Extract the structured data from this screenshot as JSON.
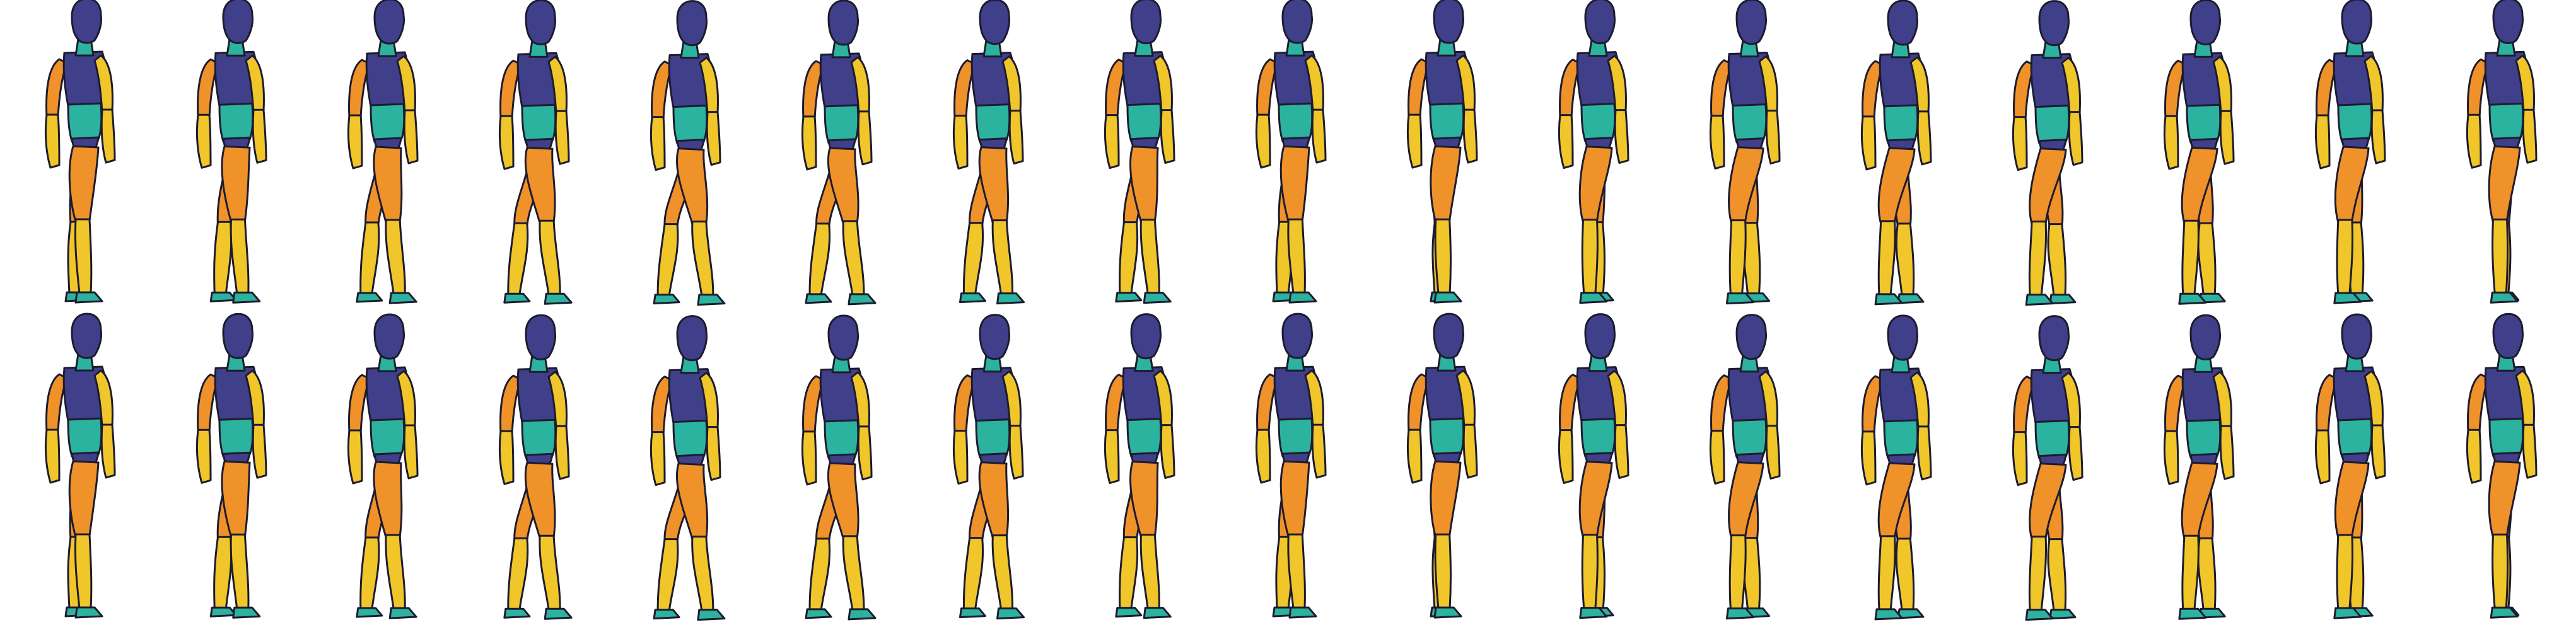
{
  "sprite_sheet": {
    "rows": 2,
    "columns": 17,
    "frame_count": 34,
    "animation": "walk-cycle",
    "character": "mannequin-figure",
    "facing": "right",
    "background": "#ffffff"
  },
  "palette": {
    "head": "#3f3f8a",
    "torso_upper": "#3f3f8a",
    "torso_lower": "#2bb3a0",
    "neck": "#2bb3a0",
    "upper_arm": "#f0922a",
    "forearm": "#f0c62a",
    "briefs": "#3f3f8a",
    "thigh": "#f0922a",
    "shin": "#f0c62a",
    "foot": "#2bb3a0",
    "outline": "#1d1b2e"
  }
}
